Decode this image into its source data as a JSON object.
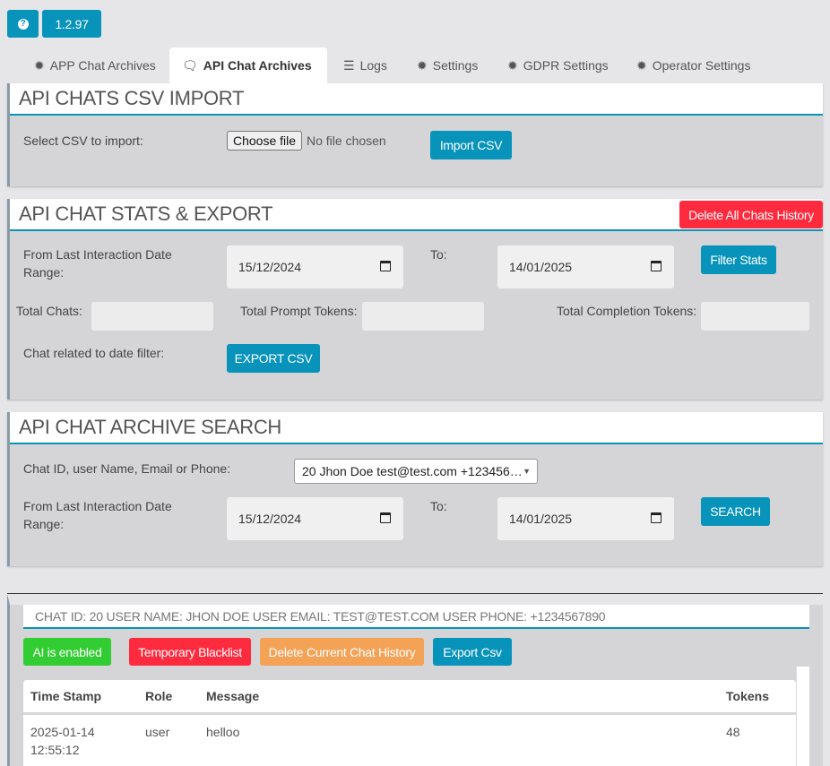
{
  "top": {
    "help_icon": "question-circle-icon",
    "version": "1.2.97"
  },
  "tabs": [
    {
      "label": "APP Chat Archives",
      "icon": "gear-icon"
    },
    {
      "label": "API Chat Archives",
      "icon": "comments-icon",
      "active": true
    },
    {
      "label": "Logs",
      "icon": "list-icon"
    },
    {
      "label": "Settings",
      "icon": "gear-icon"
    },
    {
      "label": "GDPR Settings",
      "icon": "gear-icon"
    },
    {
      "label": "Operator Settings",
      "icon": "gear-icon"
    }
  ],
  "import": {
    "title": "API CHATS CSV IMPORT",
    "label": "Select CSV to import:",
    "choose": "Choose file",
    "no_file": "No file chosen",
    "button": "Import CSV"
  },
  "stats": {
    "title": "API CHAT STATS & EXPORT",
    "delete_all": "Delete All Chats History",
    "range_label": "From Last Interaction Date Range:",
    "from": "15/12/2024",
    "to_label": "To:",
    "to": "14/01/2025",
    "filter": "Filter Stats",
    "total_chats": "Total Chats:",
    "total_prompt": "Total Prompt Tokens:",
    "total_completion": "Total Completion Tokens:",
    "export_label": "Chat related to date filter:",
    "export": "EXPORT CSV"
  },
  "search": {
    "title": "API CHAT ARCHIVE SEARCH",
    "query_label": "Chat ID, user Name, Email or Phone:",
    "selected": "20 Jhon Doe test@test.com +123456…",
    "range_label": "From Last Interaction Date Range:",
    "from": "15/12/2024",
    "to_label": "To:",
    "to": "14/01/2025",
    "button": "SEARCH"
  },
  "chat": {
    "info": "CHAT ID: 20 USER NAME: JHON DOE USER EMAIL: TEST@TEST.COM USER PHONE: +1234567890",
    "ai": "AI is enabled",
    "blacklist": "Temporary Blacklist",
    "delete": "Delete Current Chat History",
    "export": "Export Csv",
    "columns": [
      "Time Stamp",
      "Role",
      "Message",
      "Tokens"
    ],
    "rows": [
      {
        "date": "2025-01-14",
        "time": "12:55:12",
        "role": "user",
        "message": "helloo",
        "tokens": "48"
      }
    ]
  },
  "colors": {
    "primary": "#0893bb",
    "danger": "#fe2a3e",
    "success": "#32cd32",
    "warning": "#f3a256"
  }
}
